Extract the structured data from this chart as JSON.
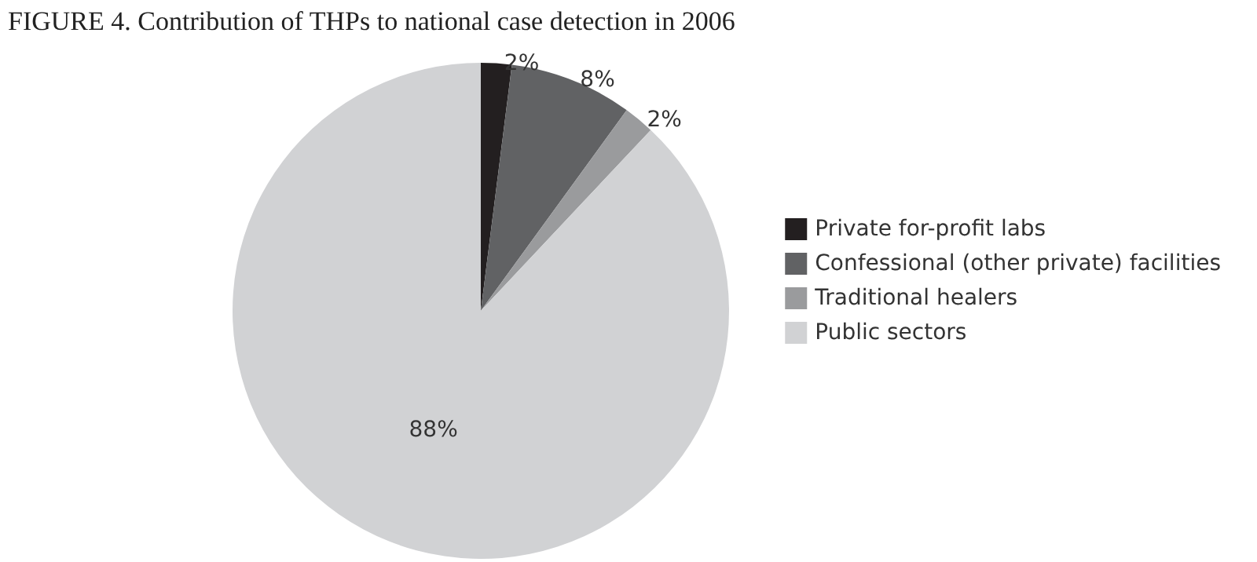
{
  "chart_data": {
    "type": "pie",
    "title": "FIGURE 4. Contribution of THPs to national case detection in 2006",
    "categories": [
      "Private for-profit labs",
      "Confessional (other private) facilities",
      "Traditional healers",
      "Public sectors"
    ],
    "values": [
      2,
      8,
      2,
      88
    ],
    "value_labels": [
      "2%",
      "8%",
      "2%",
      "88%"
    ],
    "colors": [
      "#231f20",
      "#616264",
      "#9a9b9d",
      "#d1d2d4"
    ],
    "legend": "right"
  }
}
